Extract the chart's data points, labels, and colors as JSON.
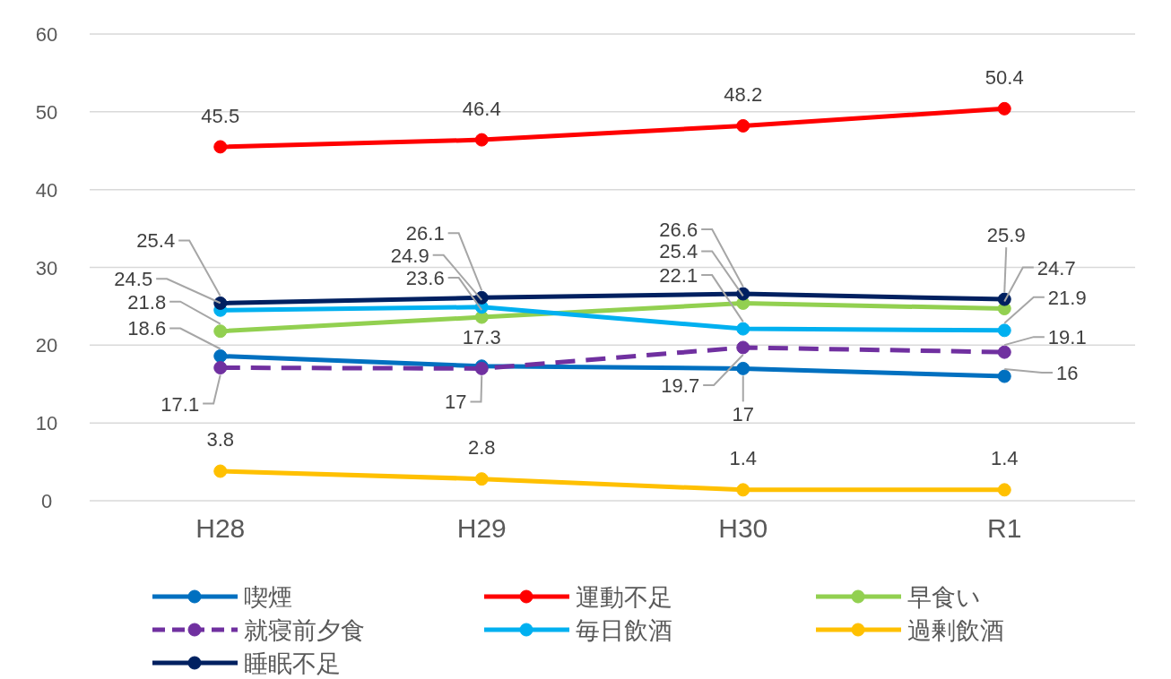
{
  "chart_data": {
    "type": "line",
    "categories": [
      "H28",
      "H29",
      "H30",
      "R1"
    ],
    "series": [
      {
        "name": "喫煙",
        "color": "#0070c0",
        "values": [
          18.6,
          17.3,
          17,
          16
        ]
      },
      {
        "name": "運動不足",
        "color": "#ff0000",
        "values": [
          45.5,
          46.4,
          48.2,
          50.4
        ]
      },
      {
        "name": "早食い",
        "color": "#92d050",
        "values": [
          21.8,
          23.6,
          25.4,
          24.7
        ]
      },
      {
        "name": "就寝前夕食",
        "color": "#7030a0",
        "values": [
          17.1,
          17,
          19.7,
          19.1
        ],
        "line_style": "dashed"
      },
      {
        "name": "毎日飲酒",
        "color": "#00b0f0",
        "values": [
          24.5,
          24.9,
          22.1,
          21.9
        ]
      },
      {
        "name": "過剰飲酒",
        "color": "#ffc000",
        "values": [
          3.8,
          2.8,
          1.4,
          1.4
        ]
      },
      {
        "name": "睡眠不足",
        "color": "#002060",
        "values": [
          25.4,
          26.1,
          26.6,
          25.9
        ]
      }
    ],
    "ylim": [
      0,
      60
    ],
    "yticks": [
      0,
      10,
      20,
      30,
      40,
      50,
      60
    ],
    "grid": "y",
    "legend": "bottom",
    "marker": "circle",
    "data_labels": true
  }
}
